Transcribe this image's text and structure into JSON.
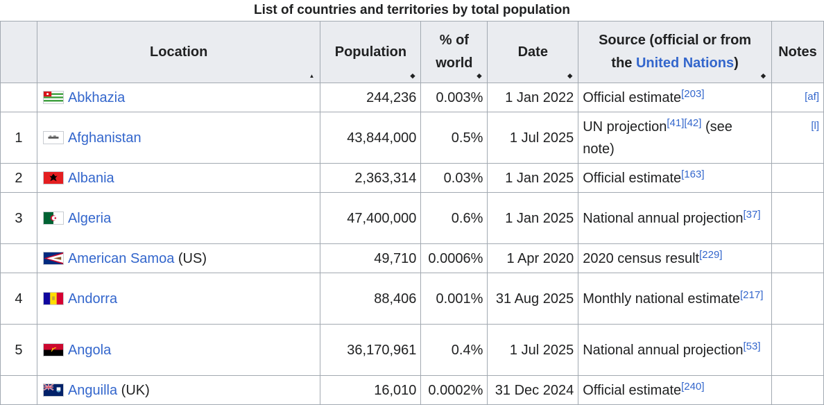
{
  "caption": "List of countries and territories by total population",
  "headers": {
    "rank": "",
    "location": "Location",
    "population": "Population",
    "percent_line1": "% of",
    "percent_line2": "world",
    "date": "Date",
    "source_line1": "Source (official or from",
    "source_the": "the",
    "source_link": "United Nations",
    "source_close": ")",
    "notes": "Notes"
  },
  "sort_icons": {
    "ascending": "▲",
    "sortable": "◆"
  },
  "rows": [
    {
      "rank": "",
      "flag": "abkhazia-flag-icon",
      "name": "Abkhazia",
      "suffix": "",
      "population": "244,236",
      "percent": "0.003%",
      "date": "1 Jan 2022",
      "source": "Official estimate",
      "ref": "[203]",
      "source_rest": "",
      "note": "[af]"
    },
    {
      "rank": "1",
      "flag": "afghanistan-flag-icon",
      "name": "Afghanistan",
      "suffix": "",
      "population": "43,844,000",
      "percent": "0.5%",
      "date": "1 Jul 2025",
      "source": "UN projection",
      "ref": "[41][42]",
      "source_rest": " (see note)",
      "note": "[l]"
    },
    {
      "rank": "2",
      "flag": "albania-flag-icon",
      "name": "Albania",
      "suffix": "",
      "population": "2,363,314",
      "percent": "0.03%",
      "date": "1 Jan 2025",
      "source": "Official estimate",
      "ref": "[163]",
      "source_rest": "",
      "note": ""
    },
    {
      "rank": "3",
      "flag": "algeria-flag-icon",
      "name": "Algeria",
      "suffix": "",
      "population": "47,400,000",
      "percent": "0.6%",
      "date": "1 Jan 2025",
      "source": "National annual projection",
      "ref": "[37]",
      "source_rest": "",
      "note": ""
    },
    {
      "rank": "",
      "flag": "american-samoa-flag-icon",
      "name": "American Samoa",
      "suffix": " (US)",
      "population": "49,710",
      "percent": "0.0006%",
      "date": "1 Apr 2020",
      "source": "2020 census result",
      "ref": "[229]",
      "source_rest": "",
      "note": ""
    },
    {
      "rank": "4",
      "flag": "andorra-flag-icon",
      "name": "Andorra",
      "suffix": "",
      "population": "88,406",
      "percent": "0.001%",
      "date": "31 Aug 2025",
      "source": "Monthly national estimate",
      "ref": "[217]",
      "source_rest": "",
      "note": ""
    },
    {
      "rank": "5",
      "flag": "angola-flag-icon",
      "name": "Angola",
      "suffix": "",
      "population": "36,170,961",
      "percent": "0.4%",
      "date": "1 Jul 2025",
      "source": "National annual projection",
      "ref": "[53]",
      "source_rest": "",
      "note": ""
    },
    {
      "rank": "",
      "flag": "anguilla-flag-icon",
      "name": "Anguilla",
      "suffix": " (UK)",
      "population": "16,010",
      "percent": "0.0002%",
      "date": "31 Dec 2024",
      "source": "Official estimate",
      "ref": "[240]",
      "source_rest": "",
      "note": ""
    }
  ],
  "colors": {
    "link": "#3366cc",
    "header_bg": "#eaecf0",
    "border": "#a2a9b1",
    "text": "#202122"
  }
}
